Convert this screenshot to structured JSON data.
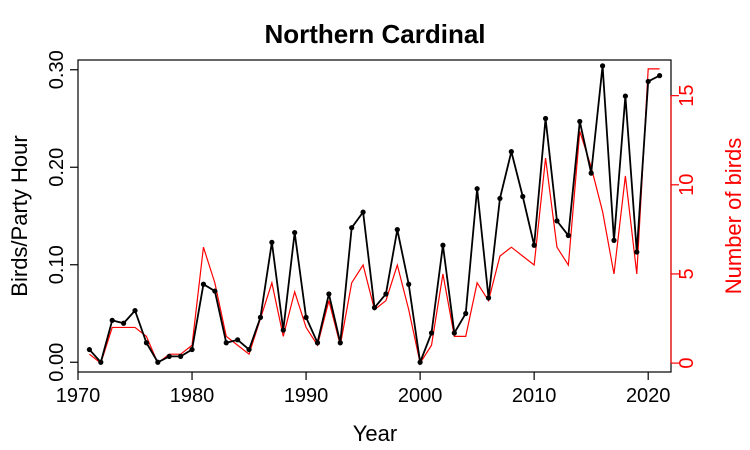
{
  "chart_data": {
    "type": "line",
    "title": "Northern Cardinal",
    "xlabel": "Year",
    "ylabel": "Birds/Party Hour",
    "y2label": "Number of birds",
    "xlim": [
      1970,
      2022
    ],
    "ylim": [
      -0.01,
      0.31
    ],
    "y2lim": [
      -0.5,
      17
    ],
    "x_ticks": [
      1970,
      1980,
      1990,
      2000,
      2010,
      2020
    ],
    "y_ticks": [
      0.0,
      0.1,
      0.2,
      0.3
    ],
    "y_tick_labels": [
      "0.00",
      "0.10",
      "0.20",
      "0.30"
    ],
    "y2_ticks": [
      0,
      5,
      10,
      15
    ],
    "colors": {
      "primary": "#000000",
      "secondary": "#ff0000"
    },
    "series": [
      {
        "axis": "left",
        "marker": "point",
        "color": "#000000",
        "x": [
          1971,
          1972,
          1973,
          1974,
          1975,
          1976,
          1977,
          1978,
          1979,
          1980,
          1981,
          1982,
          1983,
          1984,
          1985,
          1986,
          1987,
          1988,
          1989,
          1990,
          1991,
          1992,
          1993,
          1994,
          1995,
          1996,
          1997,
          1998,
          1999,
          2000,
          2001,
          2002,
          2003,
          2004,
          2005,
          2006,
          2007,
          2008,
          2009,
          2010,
          2011,
          2012,
          2013,
          2014,
          2015,
          2016,
          2017,
          2018,
          2019,
          2020,
          2021
        ],
        "values": [
          0.013,
          0.0,
          0.043,
          0.04,
          0.053,
          0.02,
          0.0,
          0.006,
          0.006,
          0.013,
          0.08,
          0.073,
          0.02,
          0.023,
          0.013,
          0.046,
          0.123,
          0.033,
          0.133,
          0.046,
          0.02,
          0.07,
          0.02,
          0.138,
          0.154,
          0.056,
          0.07,
          0.136,
          0.08,
          0.0,
          0.03,
          0.12,
          0.03,
          0.05,
          0.178,
          0.066,
          0.168,
          0.216,
          0.17,
          0.12,
          0.25,
          0.145,
          0.13,
          0.247,
          0.194,
          0.304,
          0.125,
          0.273,
          0.113,
          0.288,
          0.294
        ]
      },
      {
        "axis": "right",
        "marker": "none",
        "color": "#ff0000",
        "x": [
          1971,
          1972,
          1973,
          1974,
          1975,
          1976,
          1977,
          1978,
          1979,
          1980,
          1981,
          1982,
          1983,
          1984,
          1985,
          1986,
          1987,
          1988,
          1989,
          1990,
          1991,
          1992,
          1993,
          1994,
          1995,
          1996,
          1997,
          1998,
          1999,
          2000,
          2001,
          2002,
          2003,
          2004,
          2005,
          2006,
          2007,
          2008,
          2009,
          2010,
          2011,
          2012,
          2013,
          2014,
          2015,
          2016,
          2017,
          2018,
          2019,
          2020,
          2021
        ],
        "values": [
          0.5,
          0,
          2,
          2,
          2,
          1.5,
          0,
          0.5,
          0.5,
          1,
          6.5,
          4.5,
          1.5,
          1,
          0.5,
          2.5,
          4.5,
          1.5,
          4,
          2,
          1,
          3.5,
          1,
          4.5,
          5.5,
          3,
          3.5,
          5.5,
          3,
          0,
          1,
          5,
          1.5,
          1.5,
          4.5,
          3.5,
          6,
          6.5,
          6,
          5.5,
          11.5,
          6.5,
          5.5,
          13,
          11,
          8.5,
          5,
          10.5,
          5,
          16.5,
          16.5
        ]
      }
    ]
  }
}
